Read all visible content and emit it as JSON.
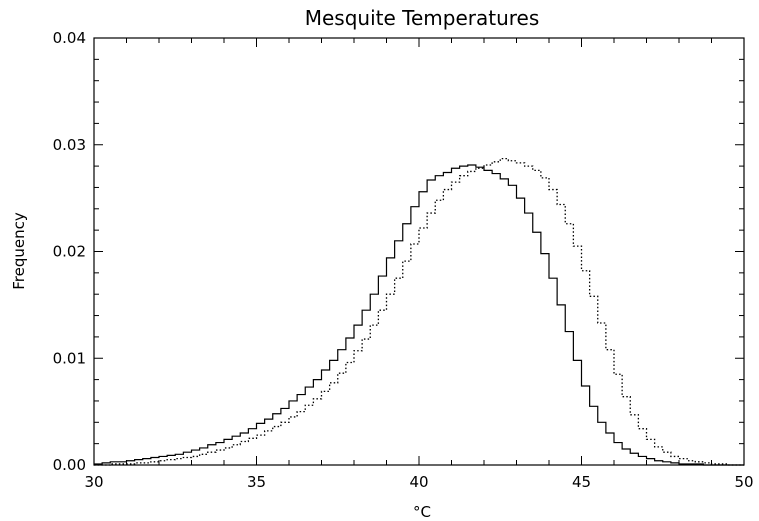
{
  "chart_data": {
    "type": "line",
    "title": "Mesquite Temperatures",
    "xlabel": "°C",
    "ylabel": "Frequency",
    "xlim": [
      30,
      50
    ],
    "ylim": [
      0,
      0.04
    ],
    "grid": false,
    "x_ticks": [
      30,
      35,
      40,
      45,
      50
    ],
    "x_tick_labels": [
      "30",
      "35",
      "40",
      "45",
      "50"
    ],
    "y_ticks": [
      0.0,
      0.01,
      0.02,
      0.03,
      0.04
    ],
    "y_tick_labels": [
      "0.00",
      "0.01",
      "0.02",
      "0.03",
      "0.04"
    ],
    "step_width": 0.25,
    "series": [
      {
        "style": "solid",
        "x": [
          30.0,
          30.25,
          30.5,
          30.75,
          31.0,
          31.25,
          31.5,
          31.75,
          32.0,
          32.25,
          32.5,
          32.75,
          33.0,
          33.25,
          33.5,
          33.75,
          34.0,
          34.25,
          34.5,
          34.75,
          35.0,
          35.25,
          35.5,
          35.75,
          36.0,
          36.25,
          36.5,
          36.75,
          37.0,
          37.25,
          37.5,
          37.75,
          38.0,
          38.25,
          38.5,
          38.75,
          39.0,
          39.25,
          39.5,
          39.75,
          40.0,
          40.25,
          40.5,
          40.75,
          41.0,
          41.25,
          41.5,
          41.75,
          42.0,
          42.25,
          42.5,
          42.75,
          43.0,
          43.25,
          43.5,
          43.75,
          44.0,
          44.25,
          44.5,
          44.75,
          45.0,
          45.25,
          45.5,
          45.75,
          46.0,
          46.25,
          46.5,
          46.75,
          47.0,
          47.25,
          47.5,
          47.75,
          48.0,
          48.25,
          48.5,
          48.75,
          49.0,
          49.25,
          49.5,
          49.75
        ],
        "values": [
          0.0001,
          0.0002,
          0.0003,
          0.0003,
          0.0004,
          0.0005,
          0.0006,
          0.0007,
          0.0008,
          0.0009,
          0.001,
          0.0012,
          0.0014,
          0.0016,
          0.0019,
          0.0021,
          0.0024,
          0.0027,
          0.003,
          0.0034,
          0.0039,
          0.0043,
          0.0048,
          0.0053,
          0.006,
          0.0066,
          0.0073,
          0.008,
          0.0089,
          0.0098,
          0.0108,
          0.0119,
          0.0131,
          0.0145,
          0.016,
          0.0177,
          0.0194,
          0.021,
          0.0226,
          0.0242,
          0.0256,
          0.0267,
          0.0271,
          0.0274,
          0.0278,
          0.028,
          0.0281,
          0.0279,
          0.0276,
          0.0273,
          0.0268,
          0.0262,
          0.025,
          0.0236,
          0.0218,
          0.0198,
          0.0175,
          0.015,
          0.0125,
          0.0098,
          0.0074,
          0.0055,
          0.004,
          0.003,
          0.0021,
          0.0015,
          0.0011,
          0.0008,
          0.0006,
          0.0004,
          0.0003,
          0.0002,
          0.0001,
          0.0001,
          0.0001,
          0.0,
          0.0,
          0.0,
          0.0,
          0.0
        ]
      },
      {
        "style": "dotted",
        "x": [
          30.0,
          30.25,
          30.5,
          30.75,
          31.0,
          31.25,
          31.5,
          31.75,
          32.0,
          32.25,
          32.5,
          32.75,
          33.0,
          33.25,
          33.5,
          33.75,
          34.0,
          34.25,
          34.5,
          34.75,
          35.0,
          35.25,
          35.5,
          35.75,
          36.0,
          36.25,
          36.5,
          36.75,
          37.0,
          37.25,
          37.5,
          37.75,
          38.0,
          38.25,
          38.5,
          38.75,
          39.0,
          39.25,
          39.5,
          39.75,
          40.0,
          40.25,
          40.5,
          40.75,
          41.0,
          41.25,
          41.5,
          41.75,
          42.0,
          42.25,
          42.5,
          42.75,
          43.0,
          43.25,
          43.5,
          43.75,
          44.0,
          44.25,
          44.5,
          44.75,
          45.0,
          45.25,
          45.5,
          45.75,
          46.0,
          46.25,
          46.5,
          46.75,
          47.0,
          47.25,
          47.5,
          47.75,
          48.0,
          48.25,
          48.5,
          48.75,
          49.0,
          49.25,
          49.5,
          49.75
        ],
        "values": [
          0.0,
          0.0,
          0.0001,
          0.0001,
          0.0001,
          0.0002,
          0.0002,
          0.0003,
          0.0004,
          0.0005,
          0.0006,
          0.0007,
          0.0008,
          0.001,
          0.0012,
          0.0014,
          0.0016,
          0.0019,
          0.0022,
          0.0025,
          0.0028,
          0.0032,
          0.0036,
          0.004,
          0.0045,
          0.005,
          0.0056,
          0.0062,
          0.0069,
          0.0077,
          0.0086,
          0.0096,
          0.0107,
          0.0118,
          0.0131,
          0.0145,
          0.016,
          0.0175,
          0.0191,
          0.0207,
          0.0222,
          0.0236,
          0.0248,
          0.0258,
          0.0265,
          0.0271,
          0.0275,
          0.0278,
          0.0281,
          0.0284,
          0.0287,
          0.0285,
          0.0283,
          0.028,
          0.0276,
          0.0269,
          0.0258,
          0.0244,
          0.0226,
          0.0205,
          0.0182,
          0.0158,
          0.0133,
          0.0108,
          0.0085,
          0.0064,
          0.0047,
          0.0034,
          0.0024,
          0.0017,
          0.0012,
          0.0008,
          0.0006,
          0.0004,
          0.0003,
          0.0002,
          0.0001,
          0.0001,
          0.0,
          0.0
        ]
      }
    ]
  }
}
